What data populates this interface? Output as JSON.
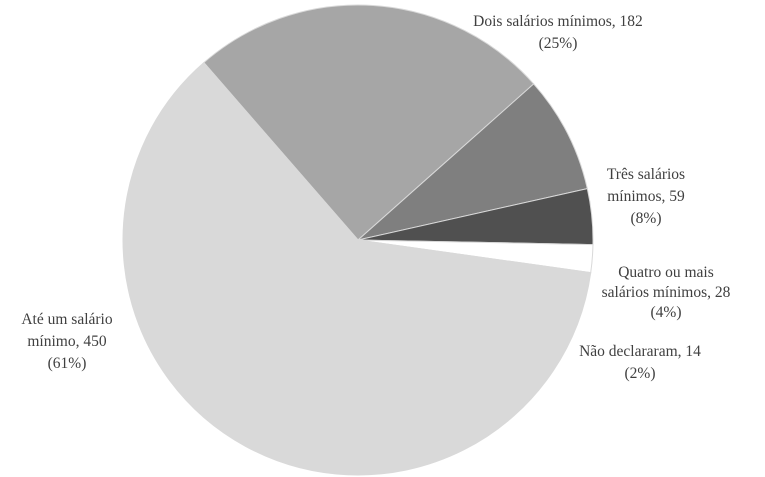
{
  "chart_data": {
    "type": "pie",
    "slices": [
      {
        "label": "Dois salários mínimos",
        "value": 182,
        "percent": "25%",
        "color": "#a6a6a6",
        "label_lines": [
          "Dois salários mínimos, 182",
          "(25%)"
        ]
      },
      {
        "label": "Três salários mínimos",
        "value": 59,
        "percent": "8%",
        "color": "#7f7f7f",
        "label_lines": [
          "Três salários",
          "mínimos, 59",
          "(8%)"
        ]
      },
      {
        "label": "Quatro ou mais salários mínimos",
        "value": 28,
        "percent": "4%",
        "color": "#505050",
        "label_lines": [
          "Quatro ou mais",
          "salários mínimos, 28",
          "(4%)"
        ]
      },
      {
        "label": "Não declararam",
        "value": 14,
        "percent": "2%",
        "color": "#ffffff",
        "label_lines": [
          "Não declararam, 14",
          "(2%)"
        ]
      },
      {
        "label": "Até um salário mínimo",
        "value": 450,
        "percent": "61%",
        "color": "#d9d9d9",
        "label_lines": [
          "Até um salário",
          "mínimo, 450",
          "(61%)"
        ]
      }
    ]
  }
}
